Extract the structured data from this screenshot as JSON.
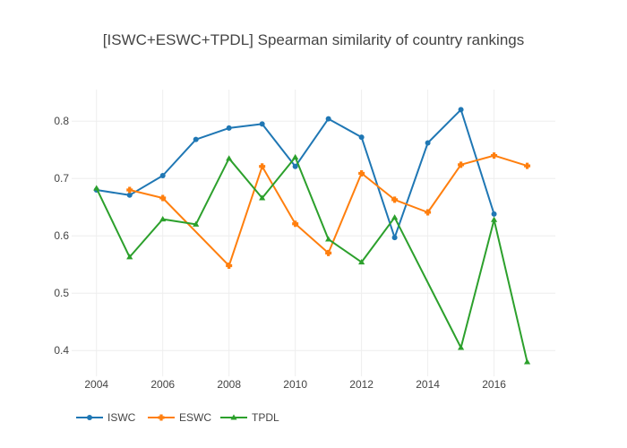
{
  "chart_data": {
    "type": "line",
    "title": "[ISWC+ESWC+TPDL] Spearman similarity of country rankings",
    "xlabel": "",
    "ylabel": "",
    "xlim": [
      2003.25,
      2017.85
    ],
    "ylim": [
      0.355,
      0.855
    ],
    "x_ticks": [
      2004,
      2006,
      2008,
      2010,
      2012,
      2014,
      2016
    ],
    "y_ticks": [
      0.4,
      0.5,
      0.6,
      0.7,
      0.8
    ],
    "grid": true,
    "legend_position": "bottom-left",
    "series": [
      {
        "name": "ISWC",
        "color": "#1f77b4",
        "marker": "circle",
        "points": [
          {
            "x": 2004,
            "y": 0.68
          },
          {
            "x": 2005,
            "y": 0.671
          },
          {
            "x": 2006,
            "y": 0.705
          },
          {
            "x": 2007,
            "y": 0.768
          },
          {
            "x": 2008,
            "y": 0.788
          },
          {
            "x": 2009,
            "y": 0.795
          },
          {
            "x": 2010,
            "y": 0.721
          },
          {
            "x": 2011,
            "y": 0.804
          },
          {
            "x": 2012,
            "y": 0.772
          },
          {
            "x": 2013,
            "y": 0.597
          },
          {
            "x": 2014,
            "y": 0.762
          },
          {
            "x": 2015,
            "y": 0.82
          },
          {
            "x": 2016,
            "y": 0.638
          }
        ]
      },
      {
        "name": "ESWC",
        "color": "#ff7f0e",
        "marker": "cross",
        "points": [
          {
            "x": 2005,
            "y": 0.68
          },
          {
            "x": 2006,
            "y": 0.666
          },
          {
            "x": 2008,
            "y": 0.548
          },
          {
            "x": 2009,
            "y": 0.721
          },
          {
            "x": 2010,
            "y": 0.621
          },
          {
            "x": 2011,
            "y": 0.57
          },
          {
            "x": 2012,
            "y": 0.709
          },
          {
            "x": 2013,
            "y": 0.663
          },
          {
            "x": 2014,
            "y": 0.641
          },
          {
            "x": 2015,
            "y": 0.724
          },
          {
            "x": 2016,
            "y": 0.74
          },
          {
            "x": 2017,
            "y": 0.722
          }
        ]
      },
      {
        "name": "TPDL",
        "color": "#2ca02c",
        "marker": "triangle-up",
        "points": [
          {
            "x": 2004,
            "y": 0.683
          },
          {
            "x": 2005,
            "y": 0.563
          },
          {
            "x": 2006,
            "y": 0.629
          },
          {
            "x": 2007,
            "y": 0.62
          },
          {
            "x": 2008,
            "y": 0.735
          },
          {
            "x": 2009,
            "y": 0.666
          },
          {
            "x": 2010,
            "y": 0.737
          },
          {
            "x": 2011,
            "y": 0.594
          },
          {
            "x": 2012,
            "y": 0.554
          },
          {
            "x": 2013,
            "y": 0.632
          },
          {
            "x": 2015,
            "y": 0.405
          },
          {
            "x": 2016,
            "y": 0.628
          },
          {
            "x": 2017,
            "y": 0.38
          }
        ]
      }
    ]
  }
}
